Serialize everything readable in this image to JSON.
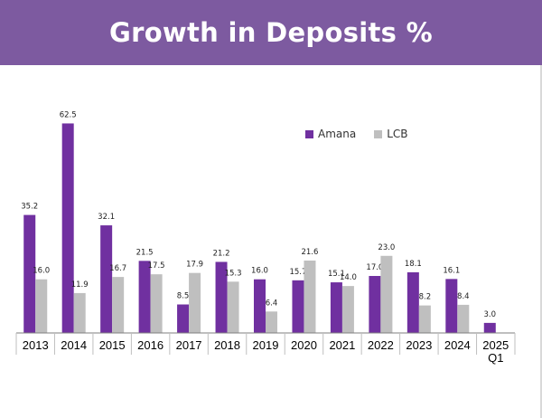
{
  "page": {
    "title": "Growth in Deposits %"
  },
  "colors": {
    "banner": "#7d5aa0",
    "amana": "#7030a0",
    "lcb": "#bfbfbf"
  },
  "chart_data": {
    "type": "bar",
    "title": "Growth in Deposits %",
    "xlabel": "",
    "ylabel": "",
    "ylim": [
      0,
      65
    ],
    "grid": false,
    "legend_position": "top-right",
    "categories": [
      "2013",
      "2014",
      "2015",
      "2016",
      "2017",
      "2018",
      "2019",
      "2020",
      "2021",
      "2022",
      "2023",
      "2024",
      "2025\nQ1"
    ],
    "series": [
      {
        "name": "Amana",
        "color": "#7030a0",
        "values": [
          35.2,
          62.5,
          32.1,
          21.5,
          8.5,
          21.2,
          16.0,
          15.7,
          15.1,
          17.0,
          18.1,
          16.1,
          3.0
        ],
        "labels": [
          "35.2",
          "62.5",
          "32.1",
          "21.5",
          "8.5",
          "21.2",
          "16.0",
          "15.7",
          "15.1",
          "17.0",
          "18.1",
          "16.1",
          "3.0"
        ]
      },
      {
        "name": "LCB",
        "color": "#bfbfbf",
        "values": [
          16.0,
          11.9,
          16.7,
          17.5,
          17.9,
          15.3,
          6.4,
          21.6,
          14.0,
          23.0,
          8.2,
          8.4,
          null
        ],
        "labels": [
          "16.0",
          "11.9",
          "16.7",
          "17.5",
          "17.9",
          "15.3",
          "6.4",
          "21.6",
          "14.0",
          "23.0",
          "8.2",
          "8.4",
          null
        ]
      }
    ]
  }
}
